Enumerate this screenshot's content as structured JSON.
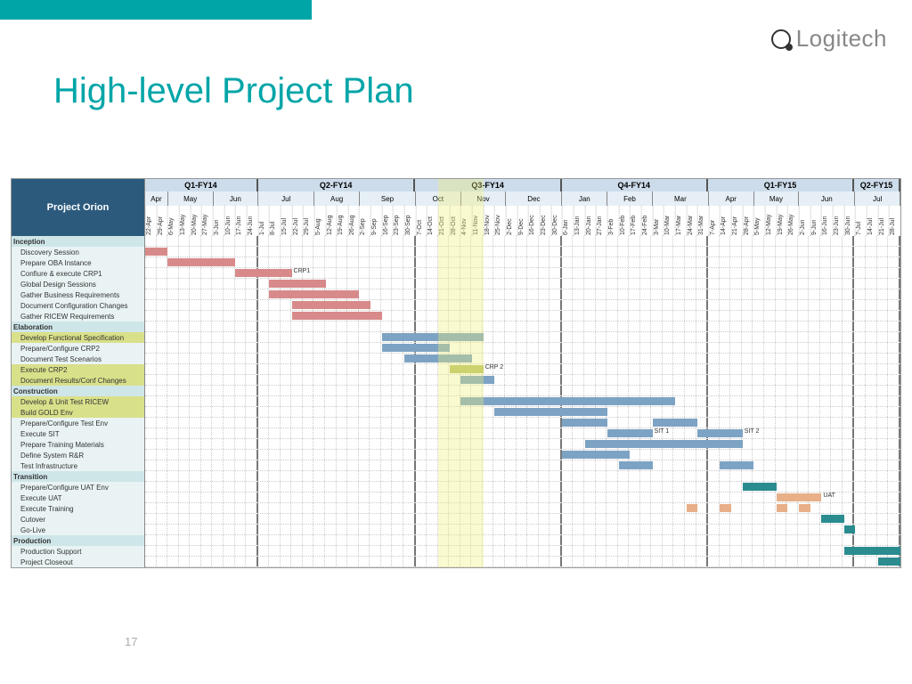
{
  "brand": "Logitech",
  "slide_title": "High-level Project Plan",
  "project_name": "Project Orion",
  "page_number": "17",
  "colors": {
    "accent": "#00a5a8",
    "header_dark": "#2b5a7d",
    "quarter_bg": "#cddcea",
    "month_bg": "#e6eff6",
    "phase_bg": "#cfe6e9",
    "task_bg": "#e9f3f4",
    "highlight_bg": "#d9e08a",
    "bar_pink": "#d88a8a",
    "bar_blue": "#7da3c4",
    "bar_olive": "#b8c268",
    "bar_teal": "#2a8c8f",
    "bar_peach": "#e8b088",
    "today_overlay": "rgba(240,240,120,0.35)"
  },
  "timeline": {
    "total_weeks": 67,
    "today_week_start": 26,
    "today_week_span": 4,
    "quarters": [
      {
        "label": "Q1-FY14",
        "weeks": 10,
        "months": [
          {
            "label": "Apr",
            "weeks": 2
          },
          {
            "label": "May",
            "weeks": 4
          },
          {
            "label": "Jun",
            "weeks": 4
          }
        ]
      },
      {
        "label": "Q2-FY14",
        "weeks": 14,
        "months": [
          {
            "label": "Jul",
            "weeks": 5
          },
          {
            "label": "Aug",
            "weeks": 4
          },
          {
            "label": "Sep",
            "weeks": 5
          }
        ]
      },
      {
        "label": "Q3-FY14",
        "weeks": 13,
        "months": [
          {
            "label": "Oct",
            "weeks": 4
          },
          {
            "label": "Nov",
            "weeks": 4
          },
          {
            "label": "Dec",
            "weeks": 5
          }
        ]
      },
      {
        "label": "Q4-FY14",
        "weeks": 13,
        "months": [
          {
            "label": "Jan",
            "weeks": 4
          },
          {
            "label": "Feb",
            "weeks": 4
          },
          {
            "label": "Mar",
            "weeks": 5
          }
        ]
      },
      {
        "label": "Q1-FY15",
        "weeks": 13,
        "months": [
          {
            "label": "Apr",
            "weeks": 4
          },
          {
            "label": "May",
            "weeks": 4
          },
          {
            "label": "Jun",
            "weeks": 5
          }
        ]
      },
      {
        "label": "Q2-FY15",
        "weeks": 4,
        "months": [
          {
            "label": "Jul",
            "weeks": 4
          }
        ]
      }
    ],
    "week_labels": [
      "22-Apr",
      "29-Apr",
      "6-May",
      "13-May",
      "20-May",
      "27-May",
      "3-Jun",
      "10-Jun",
      "17-Jun",
      "24-Jun",
      "1-Jul",
      "8-Jul",
      "15-Jul",
      "22-Jul",
      "29-Jul",
      "5-Aug",
      "12-Aug",
      "19-Aug",
      "26-Aug",
      "2-Sep",
      "9-Sep",
      "16-Sep",
      "23-Sep",
      "30-Sep",
      "7-Oct",
      "14-Oct",
      "21-Oct",
      "28-Oct",
      "4-Nov",
      "11-Nov",
      "18-Nov",
      "25-Nov",
      "2-Dec",
      "9-Dec",
      "16-Dec",
      "23-Dec",
      "30-Dec",
      "6-Jan",
      "13-Jan",
      "20-Jan",
      "27-Jan",
      "3-Feb",
      "10-Feb",
      "17-Feb",
      "24-Feb",
      "3-Mar",
      "10-Mar",
      "17-Mar",
      "24-Mar",
      "31-Mar",
      "7-Apr",
      "14-Apr",
      "21-Apr",
      "28-Apr",
      "5-May",
      "12-May",
      "19-May",
      "26-May",
      "2-Jun",
      "9-Jun",
      "16-Jun",
      "23-Jun",
      "30-Jun",
      "7-Jul",
      "14-Jul",
      "21-Jul",
      "28-Jul"
    ]
  },
  "phases": [
    {
      "name": "Inception",
      "tasks": [
        {
          "label": "Discovery Session",
          "bars": [
            {
              "start": 0,
              "span": 2,
              "color": "bar_pink"
            }
          ]
        },
        {
          "label": "Prepare OBA Instance",
          "bars": [
            {
              "start": 2,
              "span": 6,
              "color": "bar_pink"
            }
          ]
        },
        {
          "label": "Confiure & execute CRP1",
          "bars": [
            {
              "start": 8,
              "span": 5,
              "color": "bar_pink",
              "label": "CRP1"
            }
          ]
        },
        {
          "label": "Global Design Sessions",
          "bars": [
            {
              "start": 11,
              "span": 5,
              "color": "bar_pink"
            }
          ]
        },
        {
          "label": "Gather Business Requirements",
          "bars": [
            {
              "start": 11,
              "span": 8,
              "color": "bar_pink"
            }
          ]
        },
        {
          "label": "Document Configuration Changes",
          "bars": [
            {
              "start": 13,
              "span": 7,
              "color": "bar_pink"
            }
          ]
        },
        {
          "label": "Gather RICEW Requirements",
          "bars": [
            {
              "start": 13,
              "span": 8,
              "color": "bar_pink"
            }
          ]
        }
      ]
    },
    {
      "name": "Elaboration",
      "tasks": [
        {
          "label": "Develop Functional Specification",
          "highlight": true,
          "bars": [
            {
              "start": 21,
              "span": 9,
              "color": "bar_blue"
            }
          ]
        },
        {
          "label": "Prepare/Configure CRP2",
          "bars": [
            {
              "start": 21,
              "span": 6,
              "color": "bar_blue"
            }
          ]
        },
        {
          "label": "Document Test Scenarios",
          "bars": [
            {
              "start": 23,
              "span": 6,
              "color": "bar_blue"
            }
          ]
        },
        {
          "label": "Execute CRP2",
          "highlight": true,
          "bars": [
            {
              "start": 27,
              "span": 3,
              "color": "bar_olive",
              "label": "CRP 2"
            }
          ]
        },
        {
          "label": "Document Results/Conf Changes",
          "highlight": true,
          "bars": [
            {
              "start": 28,
              "span": 3,
              "color": "bar_blue"
            }
          ]
        }
      ]
    },
    {
      "name": "Construction",
      "tasks": [
        {
          "label": "Develop & Unit Test RICEW",
          "highlight": true,
          "bars": [
            {
              "start": 28,
              "span": 19,
              "color": "bar_blue"
            }
          ]
        },
        {
          "label": "Build GOLD Env",
          "highlight": true,
          "bars": [
            {
              "start": 31,
              "span": 10,
              "color": "bar_blue"
            }
          ]
        },
        {
          "label": "Prepare/Configure Test Env",
          "bars": [
            {
              "start": 37,
              "span": 4,
              "color": "bar_blue"
            },
            {
              "start": 45,
              "span": 4,
              "color": "bar_blue"
            }
          ]
        },
        {
          "label": "Execute SIT",
          "bars": [
            {
              "start": 41,
              "span": 4,
              "color": "bar_blue",
              "label": "SIT 1"
            },
            {
              "start": 49,
              "span": 4,
              "color": "bar_blue",
              "label": "SIT 2"
            }
          ]
        },
        {
          "label": "Prepare Training Materials",
          "bars": [
            {
              "start": 39,
              "span": 14,
              "color": "bar_blue"
            }
          ]
        },
        {
          "label": "Define System R&R",
          "bars": [
            {
              "start": 37,
              "span": 6,
              "color": "bar_blue"
            }
          ]
        },
        {
          "label": "Test Infrastructure",
          "bars": [
            {
              "start": 42,
              "span": 3,
              "color": "bar_blue"
            },
            {
              "start": 51,
              "span": 3,
              "color": "bar_blue"
            }
          ]
        }
      ]
    },
    {
      "name": "Transition",
      "tasks": [
        {
          "label": "Prepare/Configure UAT Env",
          "bars": [
            {
              "start": 53,
              "span": 3,
              "color": "bar_teal"
            }
          ]
        },
        {
          "label": "Execute UAT",
          "bars": [
            {
              "start": 56,
              "span": 4,
              "color": "bar_peach",
              "label": "UAT"
            }
          ]
        },
        {
          "label": "Execute Training",
          "bars": [
            {
              "start": 48,
              "span": 1,
              "color": "bar_peach"
            },
            {
              "start": 51,
              "span": 1,
              "color": "bar_peach"
            },
            {
              "start": 56,
              "span": 1,
              "color": "bar_peach"
            },
            {
              "start": 58,
              "span": 1,
              "color": "bar_peach"
            }
          ]
        },
        {
          "label": "Cutover",
          "bars": [
            {
              "start": 60,
              "span": 2,
              "color": "bar_teal"
            }
          ]
        },
        {
          "label": "Go-Live",
          "bars": [
            {
              "start": 62,
              "span": 1,
              "color": "bar_teal"
            }
          ]
        }
      ]
    },
    {
      "name": "Production",
      "tasks": [
        {
          "label": "Production Support",
          "bars": [
            {
              "start": 62,
              "span": 5,
              "color": "bar_teal"
            }
          ]
        },
        {
          "label": "Project Closeout",
          "bars": [
            {
              "start": 65,
              "span": 2,
              "color": "bar_teal"
            }
          ]
        }
      ]
    }
  ]
}
